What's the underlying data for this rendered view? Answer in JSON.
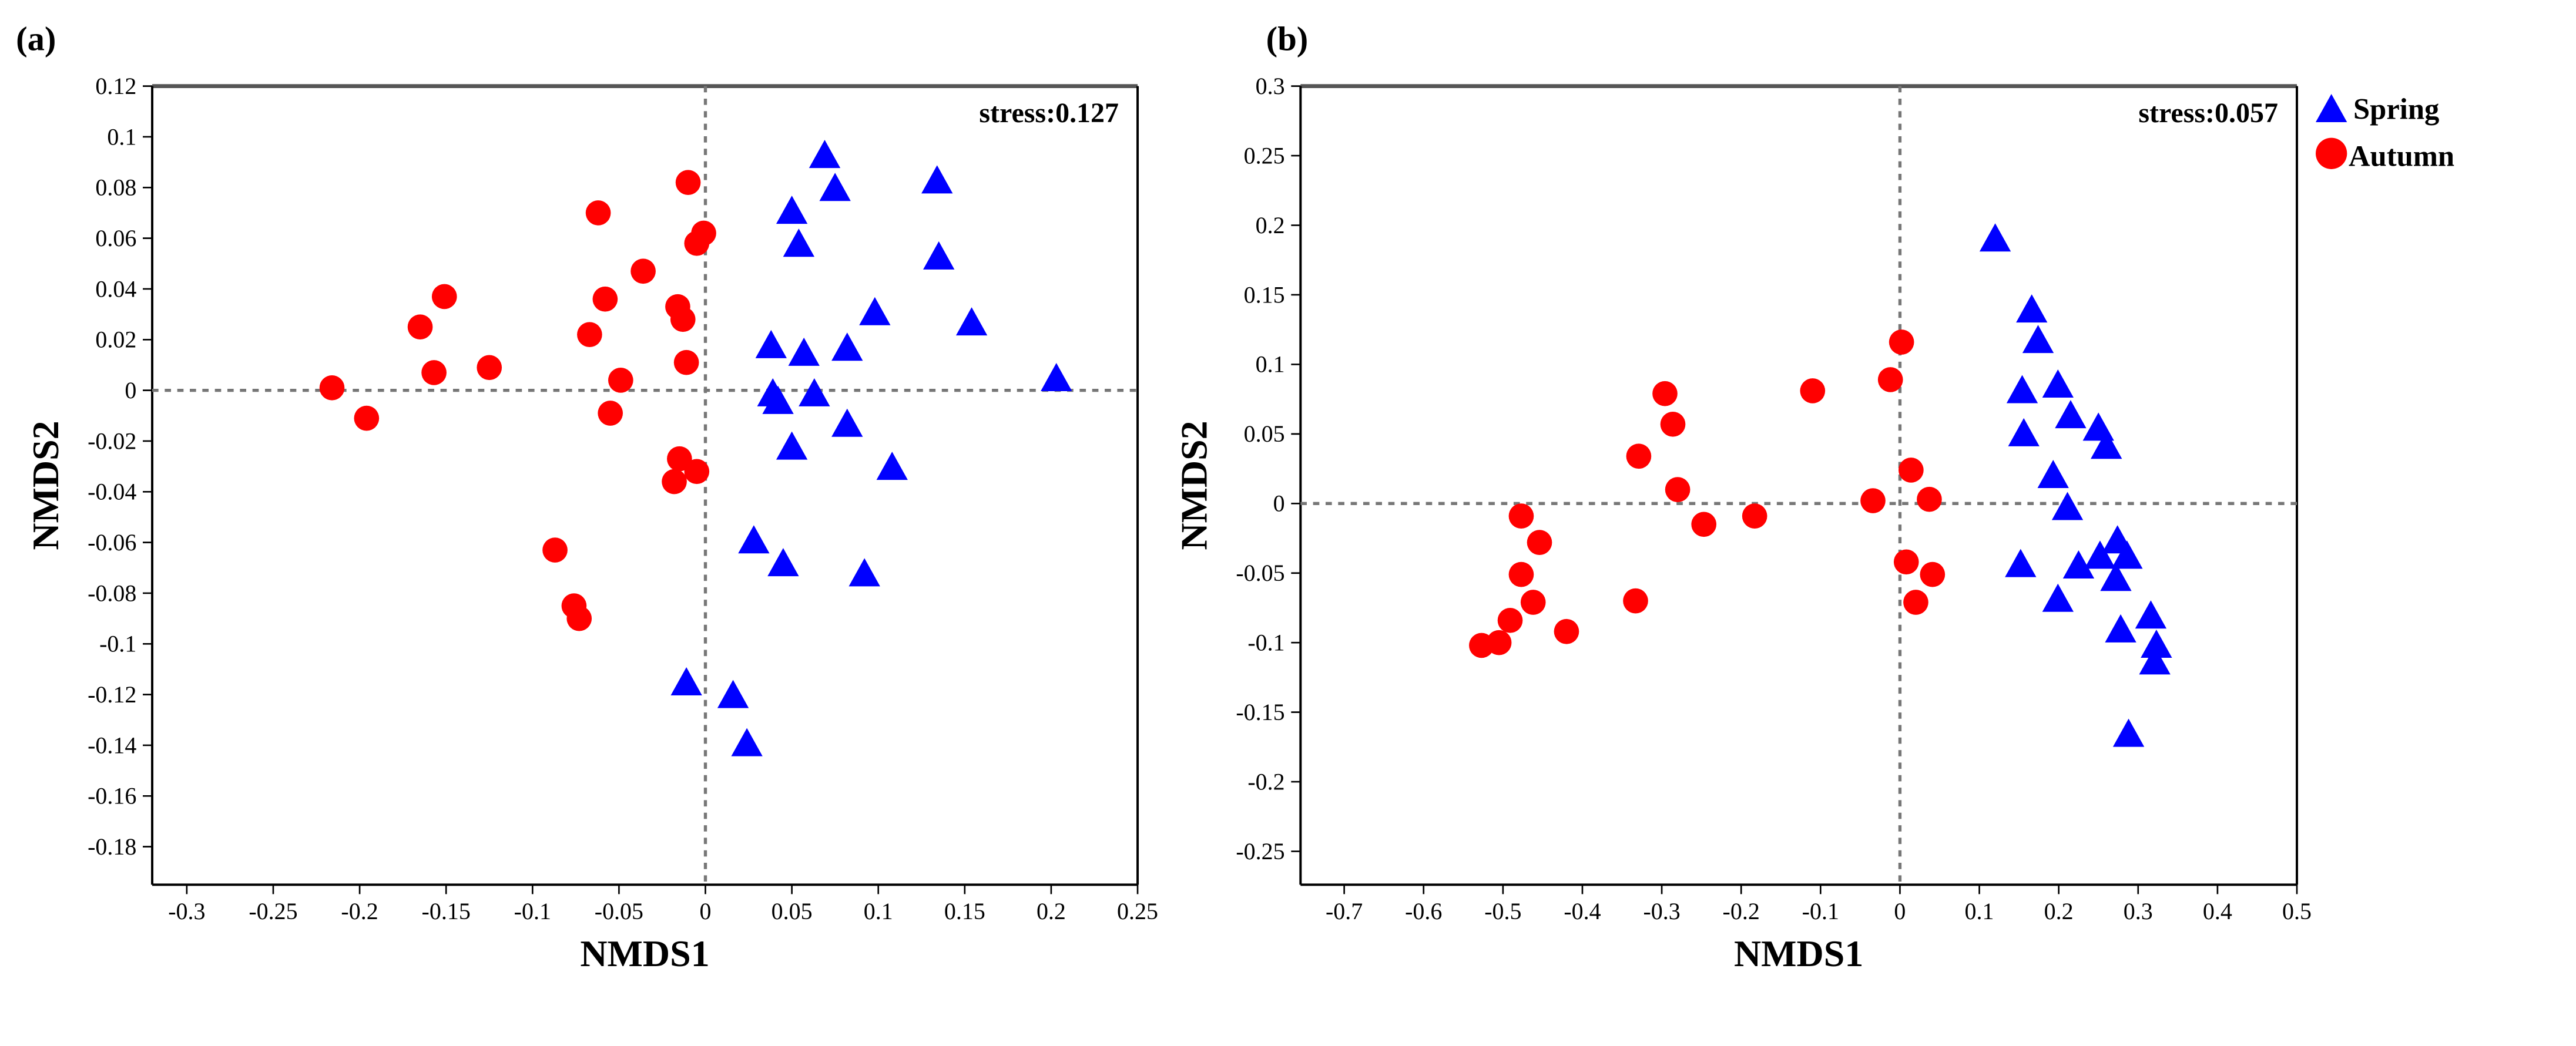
{
  "colors": {
    "spring": "#0000ff",
    "autumn": "#ff0000"
  },
  "legend": {
    "items": [
      {
        "label": "Spring",
        "shape": "triangle"
      },
      {
        "label": "Autumn",
        "shape": "circle"
      }
    ],
    "placement": "outside-top-right"
  },
  "chart_data": [
    {
      "type": "scatter",
      "panel_label": "(a)",
      "annotation": "stress:0.127",
      "xlabel": "NMDS1",
      "ylabel": "NMDS2",
      "xlim": [
        -0.32,
        0.25
      ],
      "ylim": [
        -0.195,
        0.12
      ],
      "xticks": [
        -0.3,
        -0.25,
        -0.2,
        -0.15,
        -0.1,
        -0.05,
        0,
        0.05,
        0.1,
        0.15,
        0.2,
        0.25
      ],
      "xtick_labels": [
        "-0.3",
        "-0.25",
        "-0.2",
        "-0.15",
        "-0.1",
        "-0.05",
        "0",
        "0.05",
        "0.1",
        "0.15",
        "0.2",
        "0.25"
      ],
      "yticks": [
        0.12,
        0.1,
        0.08,
        0.06,
        0.04,
        0.02,
        0,
        -0.02,
        -0.04,
        -0.06,
        -0.08,
        -0.1,
        -0.12,
        -0.14,
        -0.16,
        -0.18
      ],
      "ytick_labels": [
        "0.12",
        "0.1",
        "0.08",
        "0.06",
        "0.04",
        "0.02",
        "0",
        "-0.02",
        "-0.04",
        "-0.06",
        "-0.08",
        "-0.1",
        "-0.12",
        "-0.14",
        "-0.16",
        "-0.18"
      ],
      "series": [
        {
          "name": "Spring",
          "points": [
            [
              0.069,
              0.092
            ],
            [
              0.075,
              0.079
            ],
            [
              0.05,
              0.07
            ],
            [
              0.054,
              0.057
            ],
            [
              0.134,
              0.082
            ],
            [
              0.135,
              0.052
            ],
            [
              0.154,
              0.026
            ],
            [
              0.098,
              0.03
            ],
            [
              0.082,
              0.016
            ],
            [
              0.038,
              0.017
            ],
            [
              0.057,
              0.014
            ],
            [
              0.039,
              -0.002
            ],
            [
              0.042,
              -0.005
            ],
            [
              0.063,
              -0.002
            ],
            [
              0.05,
              -0.023
            ],
            [
              0.082,
              -0.014
            ],
            [
              0.108,
              -0.031
            ],
            [
              0.028,
              -0.06
            ],
            [
              0.045,
              -0.069
            ],
            [
              0.092,
              -0.073
            ],
            [
              0.203,
              0.004
            ],
            [
              -0.011,
              -0.116
            ],
            [
              0.016,
              -0.121
            ],
            [
              0.024,
              -0.14
            ]
          ]
        },
        {
          "name": "Autumn",
          "points": [
            [
              -0.216,
              0.001
            ],
            [
              -0.196,
              -0.011
            ],
            [
              -0.165,
              0.025
            ],
            [
              -0.151,
              0.037
            ],
            [
              -0.157,
              0.007
            ],
            [
              -0.125,
              0.009
            ],
            [
              -0.062,
              0.07
            ],
            [
              -0.058,
              0.036
            ],
            [
              -0.067,
              0.022
            ],
            [
              -0.036,
              0.047
            ],
            [
              -0.049,
              0.004
            ],
            [
              -0.055,
              -0.009
            ],
            [
              -0.01,
              0.082
            ],
            [
              -0.005,
              0.058
            ],
            [
              -0.001,
              0.062
            ],
            [
              -0.016,
              0.033
            ],
            [
              -0.013,
              0.028
            ],
            [
              -0.011,
              0.011
            ],
            [
              -0.015,
              -0.027
            ],
            [
              -0.005,
              -0.032
            ],
            [
              -0.018,
              -0.036
            ],
            [
              -0.087,
              -0.063
            ],
            [
              -0.076,
              -0.085
            ],
            [
              -0.073,
              -0.09
            ]
          ]
        }
      ]
    },
    {
      "type": "scatter",
      "panel_label": "(b)",
      "annotation": "stress:0.057",
      "xlabel": "NMDS1",
      "ylabel": "NMDS2",
      "xlim": [
        -0.755,
        0.5
      ],
      "ylim": [
        -0.274,
        0.3
      ],
      "xticks": [
        -0.7,
        -0.6,
        -0.5,
        -0.4,
        -0.3,
        -0.2,
        -0.1,
        0,
        0.1,
        0.2,
        0.3,
        0.4,
        0.5
      ],
      "xtick_labels": [
        "-0.7",
        "-0.6",
        "-0.5",
        "-0.4",
        "-0.3",
        "-0.2",
        "-0.1",
        "0",
        "0.1",
        "0.2",
        "0.3",
        "0.4",
        "0.5"
      ],
      "yticks": [
        0.3,
        0.25,
        0.2,
        0.15,
        0.1,
        0.05,
        0,
        -0.05,
        -0.1,
        -0.15,
        -0.2,
        -0.25
      ],
      "ytick_labels": [
        "0.3",
        "0.25",
        "0.2",
        "0.15",
        "0.1",
        "0.05",
        "0",
        "-0.05",
        "-0.1",
        "-0.15",
        "-0.2",
        "-0.25"
      ],
      "series": [
        {
          "name": "Spring",
          "points": [
            [
              0.12,
              0.189
            ],
            [
              0.166,
              0.138
            ],
            [
              0.174,
              0.116
            ],
            [
              0.154,
              0.08
            ],
            [
              0.199,
              0.084
            ],
            [
              0.156,
              0.049
            ],
            [
              0.215,
              0.062
            ],
            [
              0.25,
              0.053
            ],
            [
              0.26,
              0.04
            ],
            [
              0.193,
              0.019
            ],
            [
              0.211,
              -0.004
            ],
            [
              0.152,
              -0.045
            ],
            [
              0.199,
              -0.07
            ],
            [
              0.225,
              -0.046
            ],
            [
              0.252,
              -0.039
            ],
            [
              0.274,
              -0.028
            ],
            [
              0.286,
              -0.039
            ],
            [
              0.272,
              -0.055
            ],
            [
              0.278,
              -0.092
            ],
            [
              0.316,
              -0.082
            ],
            [
              0.323,
              -0.103
            ],
            [
              0.321,
              -0.115
            ],
            [
              0.288,
              -0.167
            ]
          ]
        },
        {
          "name": "Autumn",
          "points": [
            [
              -0.527,
              -0.102
            ],
            [
              -0.505,
              -0.1
            ],
            [
              -0.491,
              -0.084
            ],
            [
              -0.477,
              -0.051
            ],
            [
              -0.477,
              -0.009
            ],
            [
              -0.462,
              -0.071
            ],
            [
              -0.454,
              -0.028
            ],
            [
              -0.42,
              -0.092
            ],
            [
              -0.333,
              -0.07
            ],
            [
              -0.329,
              0.034
            ],
            [
              -0.286,
              0.057
            ],
            [
              -0.296,
              0.079
            ],
            [
              -0.28,
              0.01
            ],
            [
              -0.247,
              -0.015
            ],
            [
              -0.183,
              -0.009
            ],
            [
              -0.11,
              0.081
            ],
            [
              -0.034,
              0.002
            ],
            [
              -0.012,
              0.089
            ],
            [
              0.002,
              0.116
            ],
            [
              0.014,
              0.024
            ],
            [
              0.037,
              0.003
            ],
            [
              0.008,
              -0.042
            ],
            [
              0.02,
              -0.071
            ],
            [
              0.041,
              -0.051
            ]
          ]
        }
      ]
    }
  ]
}
